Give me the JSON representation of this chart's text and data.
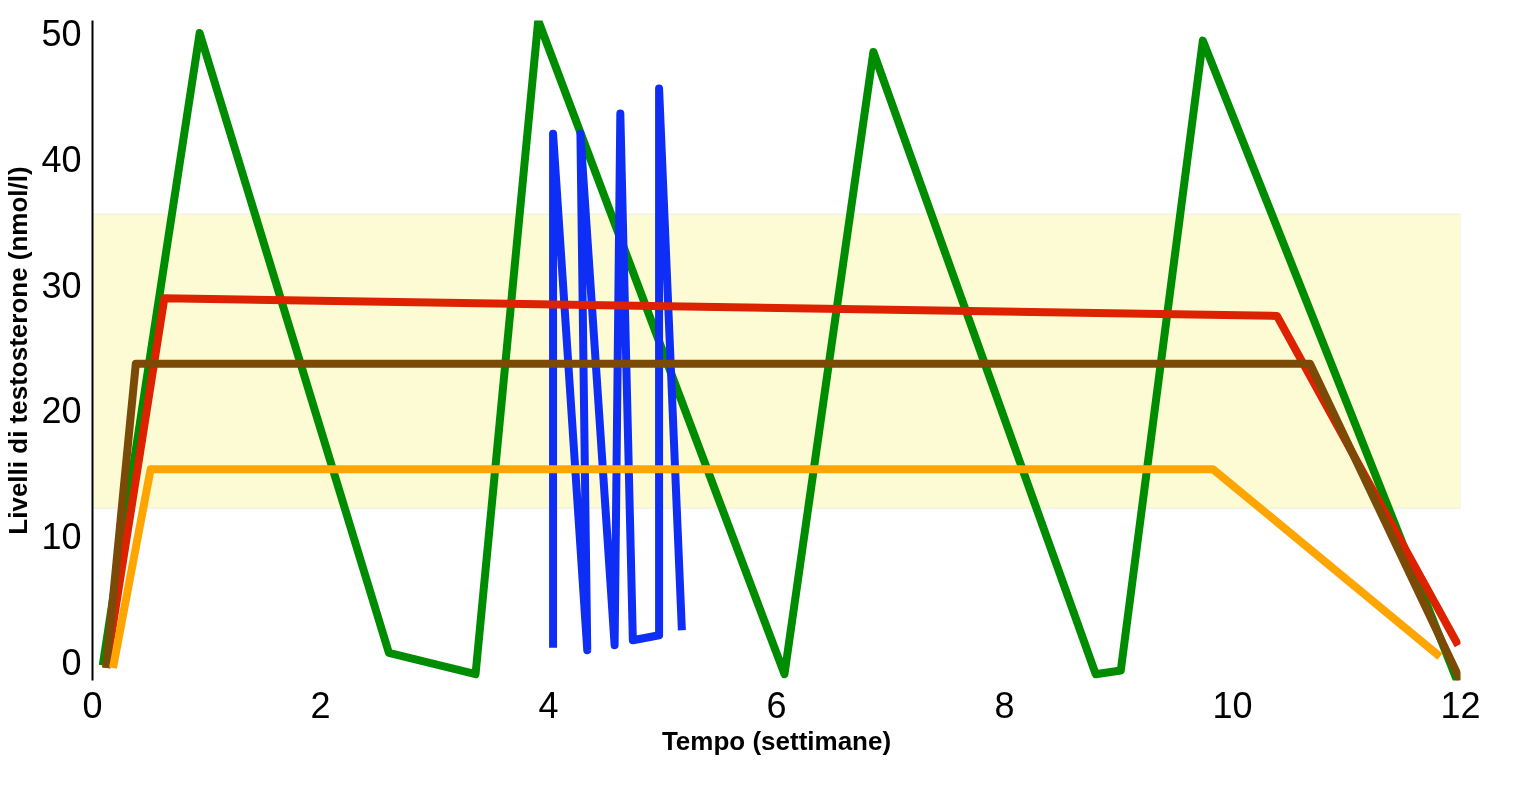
{
  "chart_data": {
    "type": "line",
    "xlabel": "Tempo (settimane)",
    "ylabel": "Livelli di testosterone (nmol/l)",
    "xlim": [
      0,
      12
    ],
    "xticks": [
      0,
      2,
      4,
      6,
      8,
      10,
      12
    ],
    "ylim": [
      -1.5,
      51
    ],
    "yticks": [
      0,
      10,
      20,
      30,
      40,
      50
    ],
    "grid": false,
    "marker": "none",
    "line_style": "solid",
    "bands": [
      {
        "axis": "y",
        "from": 12.2,
        "to": 35.6,
        "color": "#fdfbd4"
      }
    ],
    "series": [
      {
        "color": "#008c00",
        "x": [
          0.09,
          0.94,
          2.6,
          3.36,
          3.91,
          6.07,
          6.85,
          8.8,
          9.02,
          9.74,
          11.97
        ],
        "values": [
          -0.3,
          50,
          0.7,
          -1,
          51,
          -1,
          48.5,
          -1,
          -0.7,
          49.4,
          -1.5
        ]
      },
      {
        "color": "#0f2ef5",
        "x": [
          4.04,
          4.04,
          4.34,
          4.28,
          4.58,
          4.63,
          4.74,
          4.97,
          4.97,
          5.17
        ],
        "values": [
          1.1,
          42,
          0.9,
          42,
          1.3,
          43.6,
          1.7,
          2.1,
          45.6,
          2.5
        ]
      },
      {
        "color": "#dd2200",
        "x": [
          0.12,
          0.63,
          10.39,
          11.98
        ],
        "values": [
          -0.5,
          28.9,
          27.5,
          1.3
        ]
      },
      {
        "color": "#7a4a06",
        "x": [
          0.12,
          0.38,
          10.68,
          12.0
        ],
        "values": [
          -0.5,
          23.7,
          23.7,
          -1.5
        ]
      },
      {
        "color": "#ffa500",
        "x": [
          0.18,
          0.51,
          9.83,
          11.82
        ],
        "values": [
          -0.5,
          15.3,
          15.3,
          0.4
        ]
      }
    ]
  }
}
